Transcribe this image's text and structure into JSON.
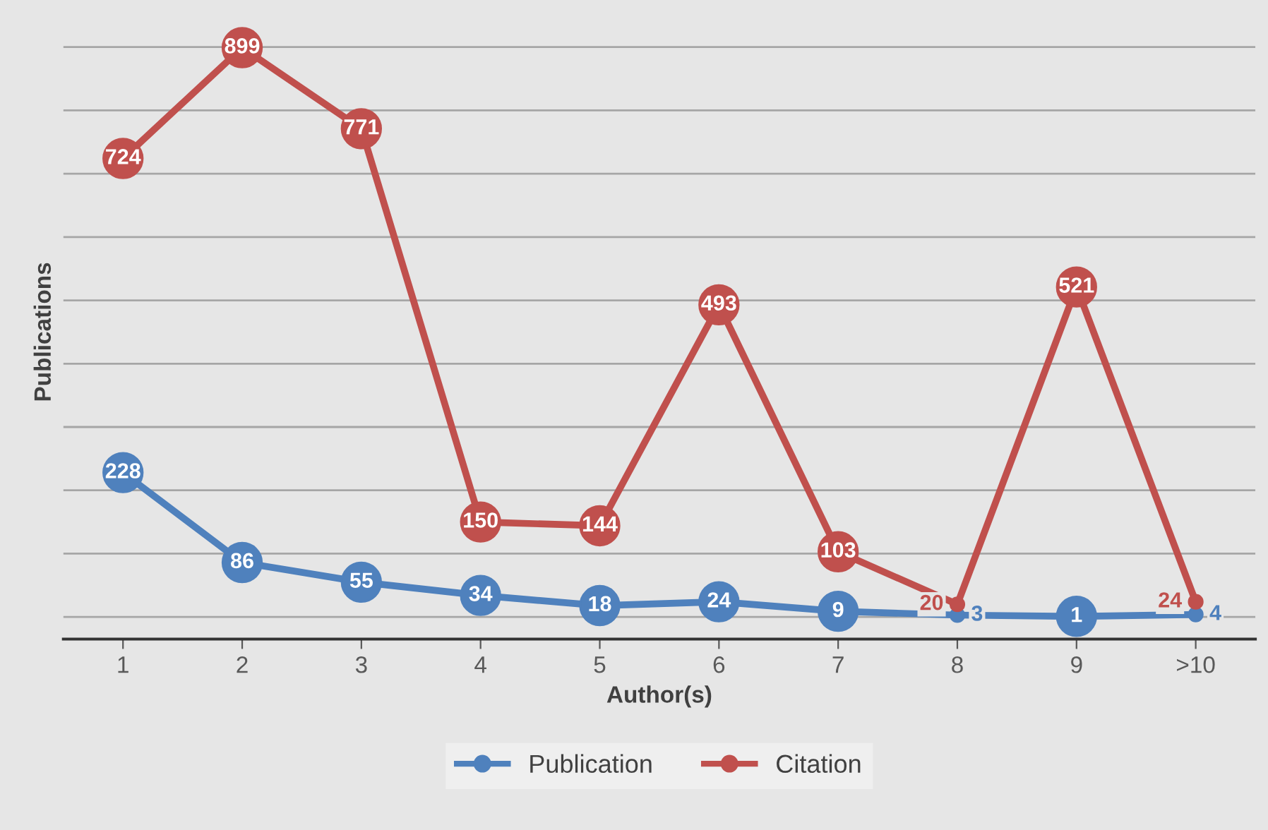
{
  "chart_data": {
    "type": "line",
    "xlabel": "Author(s)",
    "ylabel": "Publications",
    "categories": [
      "1",
      "2",
      "3",
      "4",
      "5",
      "6",
      "7",
      "8",
      "9",
      ">10"
    ],
    "series": [
      {
        "name": "Publication",
        "color": "#4f81bd",
        "values": [
          228,
          86,
          55,
          34,
          18,
          24,
          9,
          3,
          1,
          4
        ]
      },
      {
        "name": "Citation",
        "color": "#c0504d",
        "values": [
          724,
          899,
          771,
          150,
          144,
          493,
          103,
          20,
          521,
          24
        ]
      }
    ],
    "tick_labels": "x",
    "grid": "y",
    "legend": "bottom",
    "marker": "circle",
    "line_style": "solid",
    "data_labels": true
  }
}
